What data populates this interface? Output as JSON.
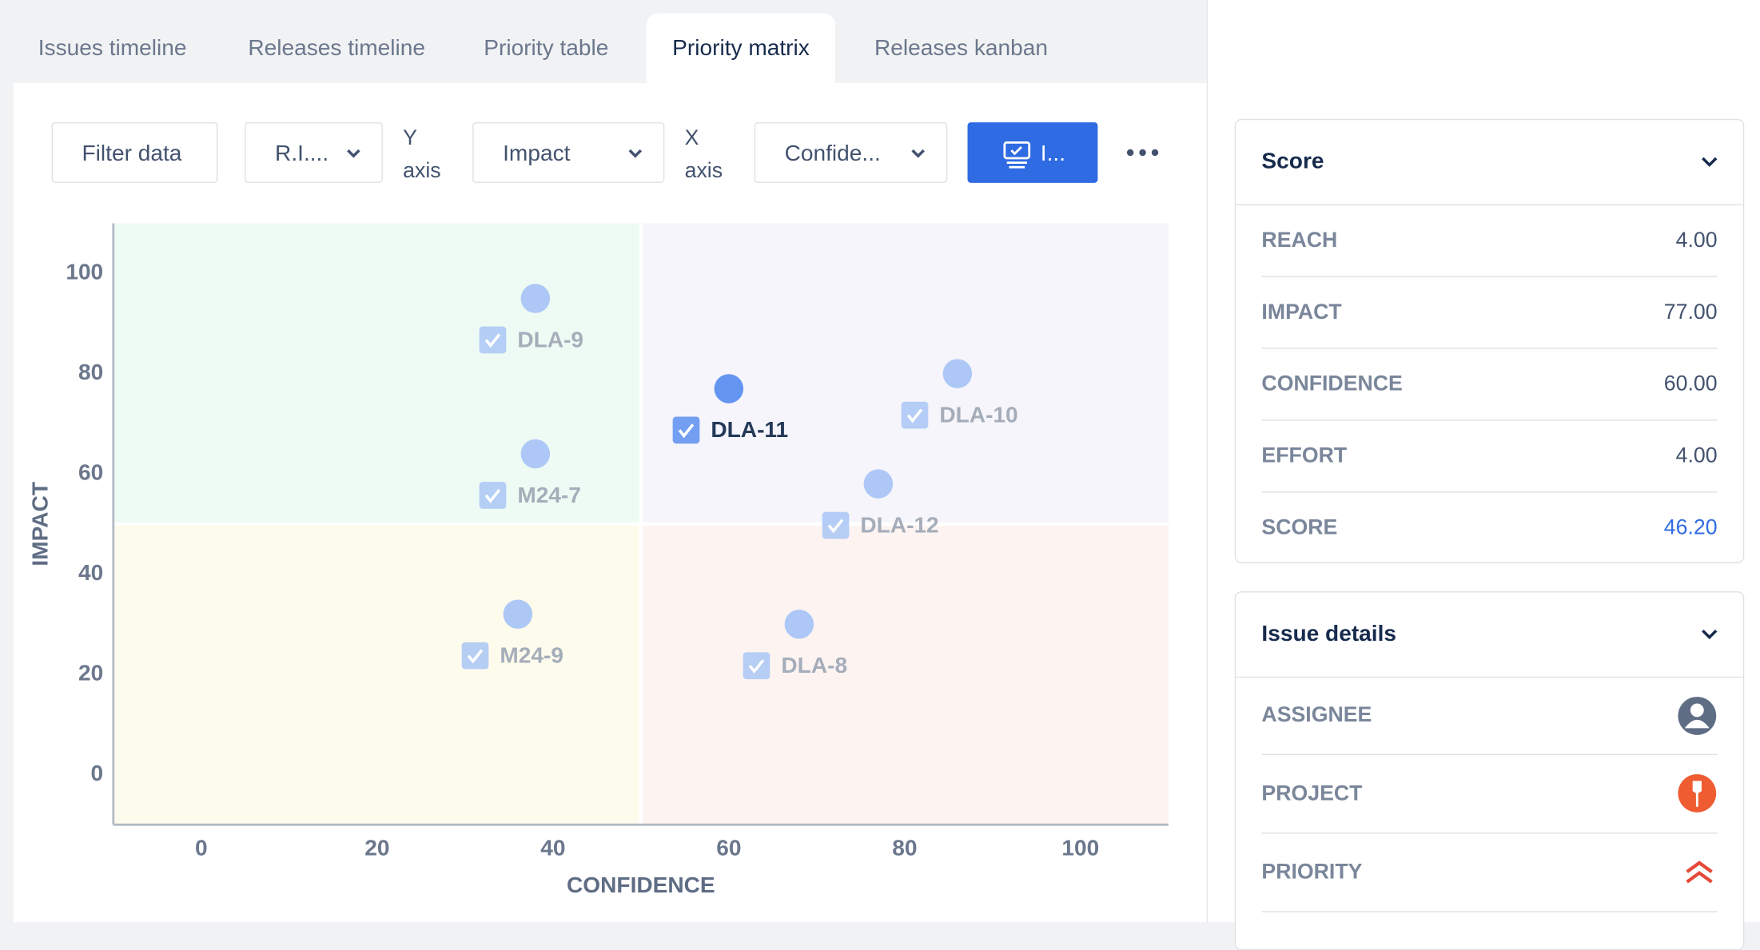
{
  "tabs": [
    "Issues timeline",
    "Releases timeline",
    "Priority table",
    "Priority matrix",
    "Releases kanban"
  ],
  "toolbar": {
    "filter": "Filter data",
    "view": "R.I....",
    "y_axis_label": "Y axis",
    "y_field": "Impact",
    "x_axis_label": "X axis",
    "x_field": "Confide...",
    "action": "I..."
  },
  "chart_data": {
    "type": "scatter",
    "xlabel": "CONFIDENCE",
    "ylabel": "IMPACT",
    "labels": [
      "DLA-9",
      "M24-7",
      "DLA-11",
      "DLA-10",
      "DLA-12",
      "M24-9",
      "DLA-8"
    ],
    "x": [
      38,
      38,
      60,
      86,
      77,
      36,
      68
    ],
    "values": [
      95,
      64,
      77,
      80,
      58,
      32,
      30
    ],
    "point_colors": [
      "#a9c5f5",
      "#a9c5f5",
      "#5c8ff0",
      "#a9c5f5",
      "#a9c5f5",
      "#a9c5f5",
      "#a9c5f5"
    ],
    "label_colors": [
      "#a5adba",
      "#a5adba",
      "#253858",
      "#a5adba",
      "#a5adba",
      "#a5adba",
      "#a5adba"
    ],
    "quadrant_colors": [
      "#eefbf4",
      "#f5f5fb",
      "#fdfbec",
      "#fdf4f2"
    ],
    "xlim": [
      -10,
      110
    ],
    "ylim": [
      -10,
      110
    ],
    "xticks": [
      0,
      20,
      40,
      60,
      80,
      100
    ],
    "yticks": [
      0,
      20,
      40,
      60,
      80,
      100
    ]
  },
  "panel": {
    "score": {
      "title": "Score",
      "rows": [
        [
          "REACH",
          "4.00"
        ],
        [
          "IMPACT",
          "77.00"
        ],
        [
          "CONFIDENCE",
          "60.00"
        ],
        [
          "EFFORT",
          "4.00"
        ],
        [
          "SCORE",
          "46.20"
        ]
      ]
    },
    "details": {
      "title": "Issue details",
      "rows": [
        "ASSIGNEE",
        "PROJECT",
        "PRIORITY"
      ]
    }
  }
}
